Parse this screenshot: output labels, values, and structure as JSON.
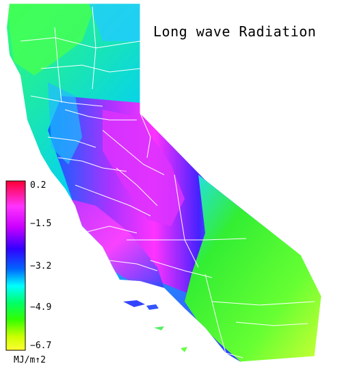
{
  "map": {
    "title": "Long wave Radiation",
    "legend": {
      "ticks": [
        "0.2",
        "−1.5",
        "−3.2",
        "−4.9",
        "−6.7"
      ],
      "unit": "MJ/m↑2",
      "colors": [
        "#ff0033",
        "#ff33ff",
        "#cc00ff",
        "#3300ff",
        "#0066ff",
        "#00ffff",
        "#00ff66",
        "#33ff00",
        "#ccff00",
        "#ffff33"
      ]
    },
    "colors": {
      "north_coast": "#33ff66",
      "central_valley": "#3344ff",
      "sierra": "#cc33ff",
      "desert": "#33ee33",
      "county_lines": "#ffffff"
    }
  }
}
